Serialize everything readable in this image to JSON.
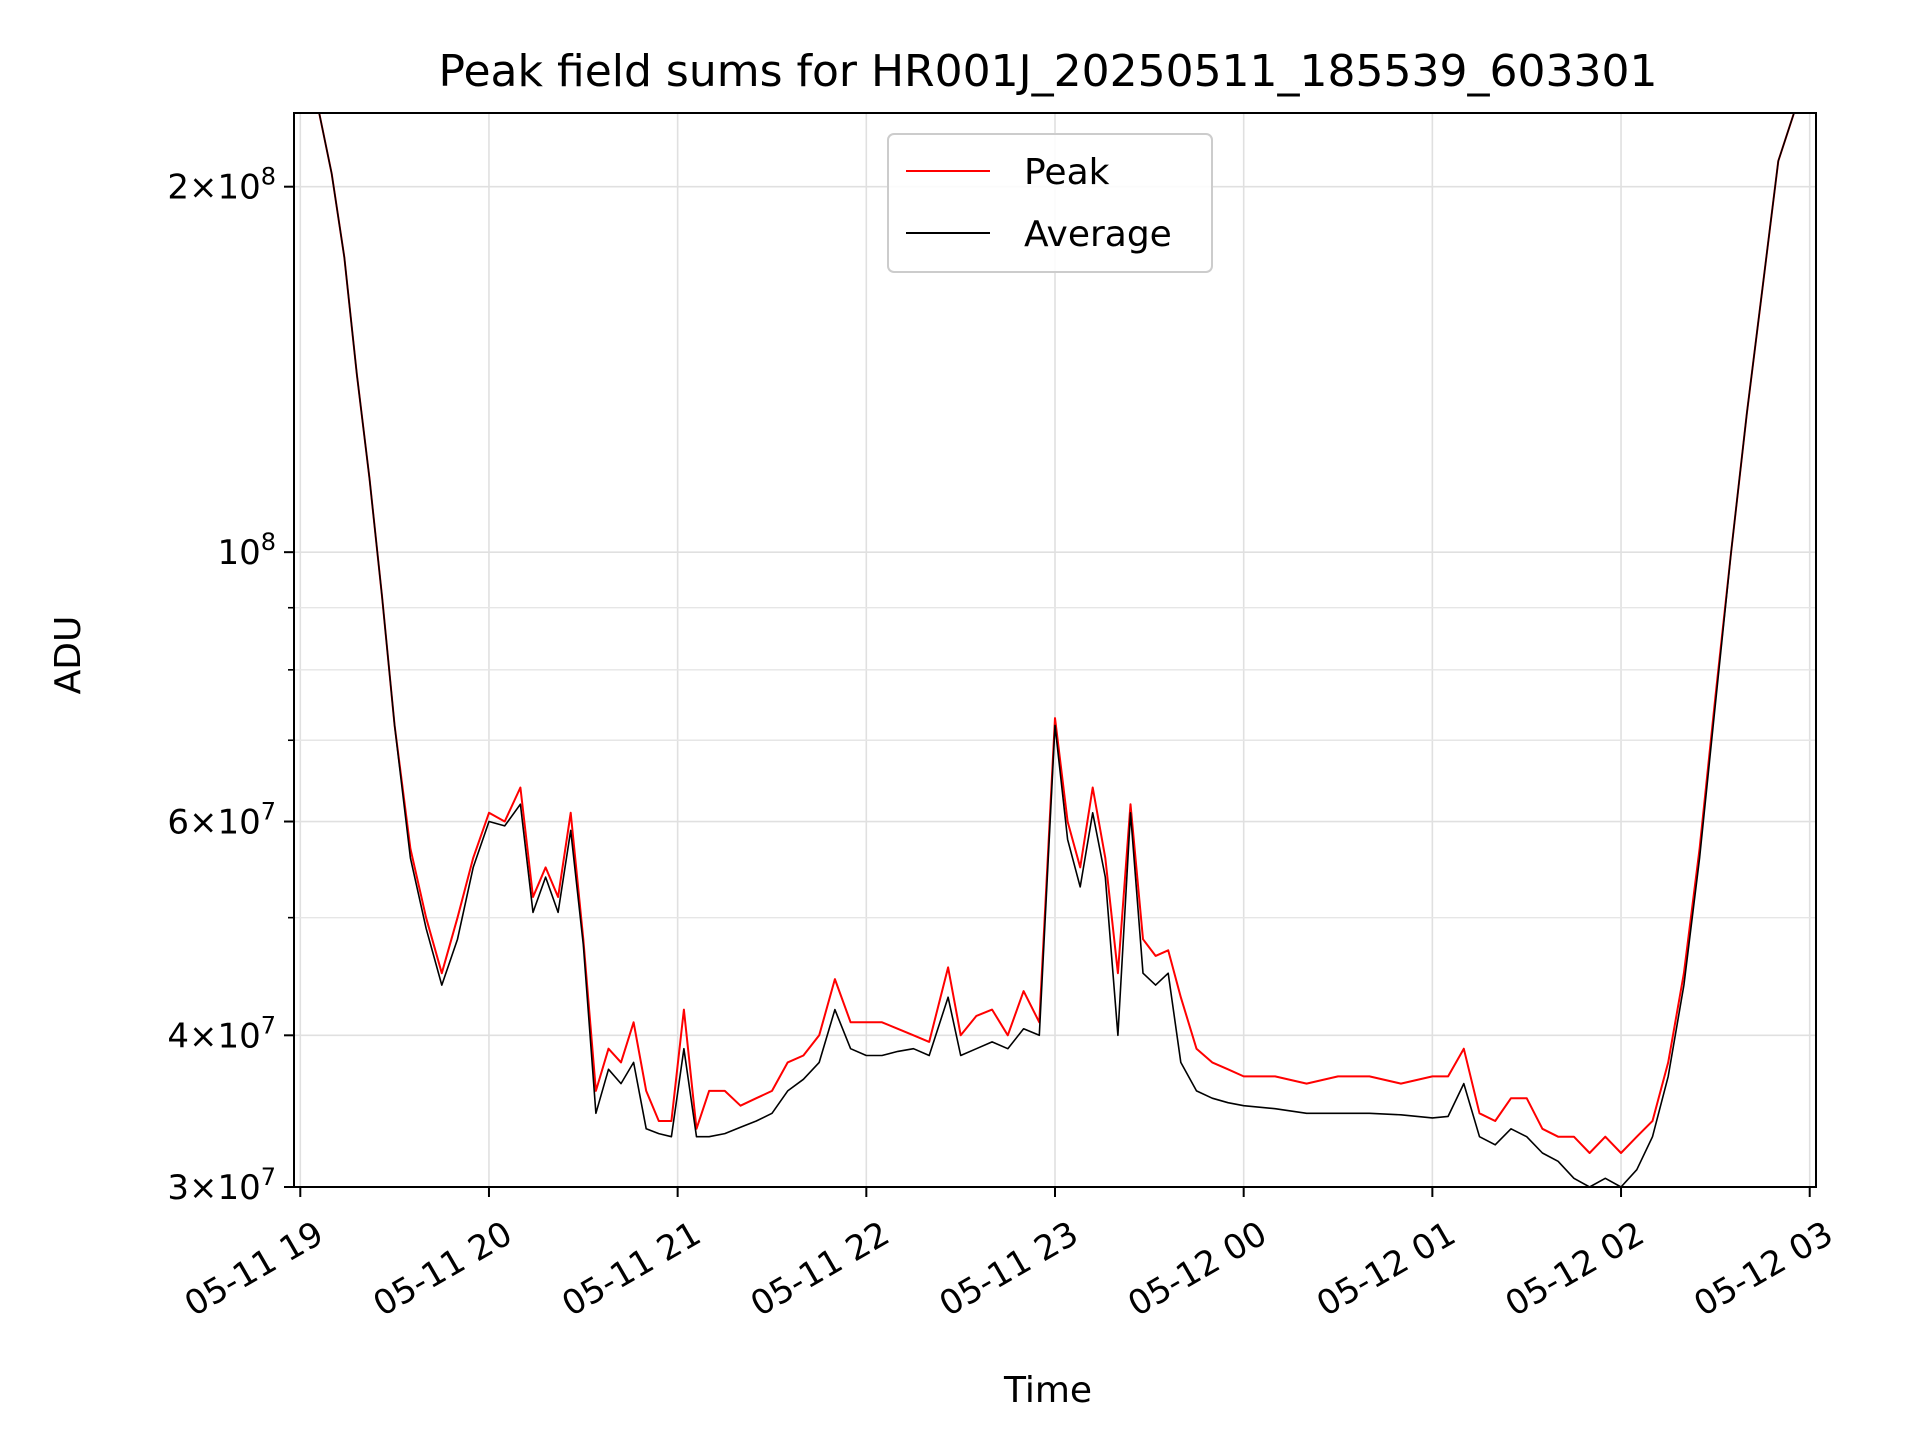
{
  "chart_data": {
    "type": "line",
    "title": "Peak field sums for HR001J_20250511_185539_603301",
    "xlabel": "Time",
    "ylabel": "ADU",
    "yscale": "log",
    "xlim": [
      "2025-05-11 18:58",
      "2025-05-12 03:02"
    ],
    "ylim": [
      30000000,
      230000000
    ],
    "grid": true,
    "legend_position": "top-center",
    "x_ticks": [
      {
        "value": "2025-05-11 19:00",
        "label": "05-11 19"
      },
      {
        "value": "2025-05-11 20:00",
        "label": "05-11 20"
      },
      {
        "value": "2025-05-11 21:00",
        "label": "05-11 21"
      },
      {
        "value": "2025-05-11 22:00",
        "label": "05-11 22"
      },
      {
        "value": "2025-05-11 23:00",
        "label": "05-11 23"
      },
      {
        "value": "2025-05-12 00:00",
        "label": "05-12 00"
      },
      {
        "value": "2025-05-12 01:00",
        "label": "05-12 01"
      },
      {
        "value": "2025-05-12 02:00",
        "label": "05-12 02"
      },
      {
        "value": "2025-05-12 03:00",
        "label": "05-12 03"
      }
    ],
    "y_ticks": [
      {
        "value": 30000000,
        "mant": "3",
        "exp": "7"
      },
      {
        "value": 40000000,
        "mant": "4",
        "exp": "7"
      },
      {
        "value": 60000000,
        "mant": "6",
        "exp": "7"
      },
      {
        "value": 100000000,
        "mant": "",
        "exp": "8"
      },
      {
        "value": 200000000,
        "mant": "2",
        "exp": "8"
      }
    ],
    "series": [
      {
        "name": "Peak",
        "color": "#ff0000",
        "x": [
          "2025-05-11 18:58",
          "2025-05-11 19:02",
          "2025-05-11 19:06",
          "2025-05-11 19:10",
          "2025-05-11 19:14",
          "2025-05-11 19:18",
          "2025-05-11 19:22",
          "2025-05-11 19:26",
          "2025-05-11 19:30",
          "2025-05-11 19:35",
          "2025-05-11 19:40",
          "2025-05-11 19:45",
          "2025-05-11 19:50",
          "2025-05-11 19:55",
          "2025-05-11 20:00",
          "2025-05-11 20:05",
          "2025-05-11 20:10",
          "2025-05-11 20:14",
          "2025-05-11 20:18",
          "2025-05-11 20:22",
          "2025-05-11 20:26",
          "2025-05-11 20:30",
          "2025-05-11 20:34",
          "2025-05-11 20:38",
          "2025-05-11 20:42",
          "2025-05-11 20:46",
          "2025-05-11 20:50",
          "2025-05-11 20:54",
          "2025-05-11 20:58",
          "2025-05-11 21:02",
          "2025-05-11 21:06",
          "2025-05-11 21:10",
          "2025-05-11 21:15",
          "2025-05-11 21:20",
          "2025-05-11 21:25",
          "2025-05-11 21:30",
          "2025-05-11 21:35",
          "2025-05-11 21:40",
          "2025-05-11 21:45",
          "2025-05-11 21:50",
          "2025-05-11 21:55",
          "2025-05-11 22:00",
          "2025-05-11 22:05",
          "2025-05-11 22:10",
          "2025-05-11 22:15",
          "2025-05-11 22:20",
          "2025-05-11 22:26",
          "2025-05-11 22:30",
          "2025-05-11 22:35",
          "2025-05-11 22:40",
          "2025-05-11 22:45",
          "2025-05-11 22:50",
          "2025-05-11 22:55",
          "2025-05-11 23:00",
          "2025-05-11 23:04",
          "2025-05-11 23:08",
          "2025-05-11 23:12",
          "2025-05-11 23:16",
          "2025-05-11 23:20",
          "2025-05-11 23:24",
          "2025-05-11 23:28",
          "2025-05-11 23:32",
          "2025-05-11 23:36",
          "2025-05-11 23:40",
          "2025-05-11 23:45",
          "2025-05-11 23:50",
          "2025-05-11 23:55",
          "2025-05-12 00:00",
          "2025-05-12 00:10",
          "2025-05-12 00:20",
          "2025-05-12 00:30",
          "2025-05-12 00:40",
          "2025-05-12 00:50",
          "2025-05-12 01:00",
          "2025-05-12 01:05",
          "2025-05-12 01:10",
          "2025-05-12 01:15",
          "2025-05-12 01:20",
          "2025-05-12 01:25",
          "2025-05-12 01:30",
          "2025-05-12 01:35",
          "2025-05-12 01:40",
          "2025-05-12 01:45",
          "2025-05-12 01:50",
          "2025-05-12 01:55",
          "2025-05-12 02:00",
          "2025-05-12 02:05",
          "2025-05-12 02:10",
          "2025-05-12 02:15",
          "2025-05-12 02:20",
          "2025-05-12 02:25",
          "2025-05-12 02:30",
          "2025-05-12 02:35",
          "2025-05-12 02:40",
          "2025-05-12 02:45",
          "2025-05-12 02:50",
          "2025-05-12 02:55",
          "2025-05-12 03:00"
        ],
        "y": [
          230000000,
          230000000,
          230000000,
          205000000,
          175000000,
          140000000,
          115000000,
          92000000,
          72000000,
          57000000,
          50000000,
          45000000,
          50000000,
          56000000,
          61000000,
          60000000,
          64000000,
          52000000,
          55000000,
          52000000,
          61000000,
          48000000,
          36000000,
          39000000,
          38000000,
          41000000,
          36000000,
          34000000,
          34000000,
          42000000,
          33500000,
          36000000,
          36000000,
          35000000,
          35500000,
          36000000,
          38000000,
          38500000,
          40000000,
          44500000,
          41000000,
          41000000,
          41000000,
          40500000,
          40000000,
          39500000,
          45500000,
          40000000,
          41500000,
          42000000,
          40000000,
          43500000,
          41000000,
          73000000,
          60000000,
          55000000,
          64000000,
          56000000,
          45000000,
          62000000,
          48000000,
          46500000,
          47000000,
          43000000,
          39000000,
          38000000,
          37500000,
          37000000,
          37000000,
          36500000,
          37000000,
          37000000,
          36500000,
          37000000,
          37000000,
          39000000,
          34500000,
          34000000,
          35500000,
          35500000,
          33500000,
          33000000,
          33000000,
          32000000,
          33000000,
          32000000,
          33000000,
          34000000,
          38000000,
          45000000,
          57000000,
          76000000,
          100000000,
          130000000,
          165000000,
          210000000,
          230000000,
          230000000
        ]
      },
      {
        "name": "Average",
        "color": "#000000",
        "x": [
          "2025-05-11 18:58",
          "2025-05-11 19:02",
          "2025-05-11 19:06",
          "2025-05-11 19:10",
          "2025-05-11 19:14",
          "2025-05-11 19:18",
          "2025-05-11 19:22",
          "2025-05-11 19:26",
          "2025-05-11 19:30",
          "2025-05-11 19:35",
          "2025-05-11 19:40",
          "2025-05-11 19:45",
          "2025-05-11 19:50",
          "2025-05-11 19:55",
          "2025-05-11 20:00",
          "2025-05-11 20:05",
          "2025-05-11 20:10",
          "2025-05-11 20:14",
          "2025-05-11 20:18",
          "2025-05-11 20:22",
          "2025-05-11 20:26",
          "2025-05-11 20:30",
          "2025-05-11 20:34",
          "2025-05-11 20:38",
          "2025-05-11 20:42",
          "2025-05-11 20:46",
          "2025-05-11 20:50",
          "2025-05-11 20:54",
          "2025-05-11 20:58",
          "2025-05-11 21:02",
          "2025-05-11 21:06",
          "2025-05-11 21:10",
          "2025-05-11 21:15",
          "2025-05-11 21:20",
          "2025-05-11 21:25",
          "2025-05-11 21:30",
          "2025-05-11 21:35",
          "2025-05-11 21:40",
          "2025-05-11 21:45",
          "2025-05-11 21:50",
          "2025-05-11 21:55",
          "2025-05-11 22:00",
          "2025-05-11 22:05",
          "2025-05-11 22:10",
          "2025-05-11 22:15",
          "2025-05-11 22:20",
          "2025-05-11 22:26",
          "2025-05-11 22:30",
          "2025-05-11 22:35",
          "2025-05-11 22:40",
          "2025-05-11 22:45",
          "2025-05-11 22:50",
          "2025-05-11 22:55",
          "2025-05-11 23:00",
          "2025-05-11 23:04",
          "2025-05-11 23:08",
          "2025-05-11 23:12",
          "2025-05-11 23:16",
          "2025-05-11 23:20",
          "2025-05-11 23:24",
          "2025-05-11 23:28",
          "2025-05-11 23:32",
          "2025-05-11 23:36",
          "2025-05-11 23:40",
          "2025-05-11 23:45",
          "2025-05-11 23:50",
          "2025-05-11 23:55",
          "2025-05-12 00:00",
          "2025-05-12 00:10",
          "2025-05-12 00:20",
          "2025-05-12 00:30",
          "2025-05-12 00:40",
          "2025-05-12 00:50",
          "2025-05-12 01:00",
          "2025-05-12 01:05",
          "2025-05-12 01:10",
          "2025-05-12 01:15",
          "2025-05-12 01:20",
          "2025-05-12 01:25",
          "2025-05-12 01:30",
          "2025-05-12 01:35",
          "2025-05-12 01:40",
          "2025-05-12 01:45",
          "2025-05-12 01:50",
          "2025-05-12 01:55",
          "2025-05-12 02:00",
          "2025-05-12 02:05",
          "2025-05-12 02:10",
          "2025-05-12 02:15",
          "2025-05-12 02:20",
          "2025-05-12 02:25",
          "2025-05-12 02:30",
          "2025-05-12 02:35",
          "2025-05-12 02:40",
          "2025-05-12 02:45",
          "2025-05-12 02:50",
          "2025-05-12 02:55",
          "2025-05-12 03:00"
        ],
        "y": [
          230000000,
          230000000,
          230000000,
          205000000,
          175000000,
          140000000,
          115000000,
          92000000,
          72000000,
          56000000,
          49000000,
          44000000,
          48000000,
          55000000,
          60000000,
          59500000,
          62000000,
          50500000,
          54000000,
          50500000,
          59000000,
          47500000,
          34500000,
          37500000,
          36500000,
          38000000,
          33500000,
          33200000,
          33000000,
          39000000,
          33000000,
          33000000,
          33200000,
          33600000,
          34000000,
          34500000,
          36000000,
          36800000,
          38000000,
          42000000,
          39000000,
          38500000,
          38500000,
          38800000,
          39000000,
          38500000,
          43000000,
          38500000,
          39000000,
          39500000,
          39000000,
          40500000,
          40000000,
          72000000,
          58000000,
          53000000,
          61000000,
          54000000,
          40000000,
          61000000,
          45000000,
          44000000,
          45000000,
          38000000,
          36000000,
          35500000,
          35200000,
          35000000,
          34800000,
          34500000,
          34500000,
          34500000,
          34400000,
          34200000,
          34300000,
          36500000,
          33000000,
          32500000,
          33500000,
          33000000,
          32000000,
          31500000,
          30500000,
          30000000,
          30500000,
          30000000,
          31000000,
          33000000,
          37000000,
          44000000,
          56000000,
          75000000,
          100000000,
          130000000,
          165000000,
          210000000,
          230000000,
          230000000
        ]
      }
    ]
  }
}
